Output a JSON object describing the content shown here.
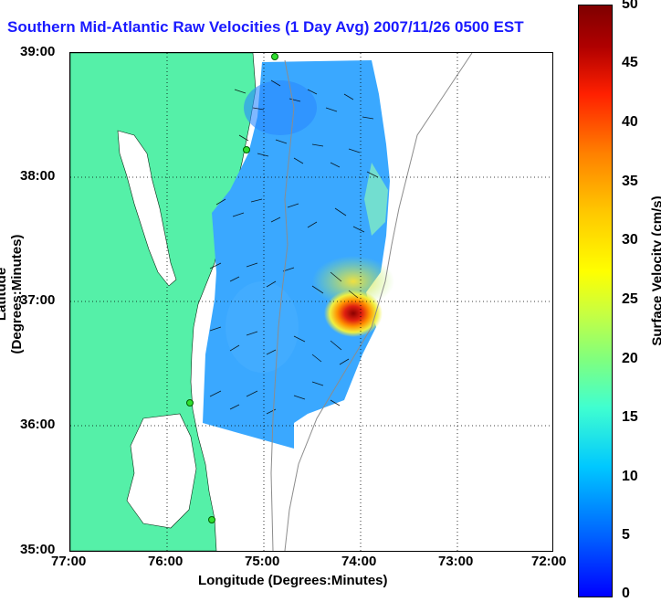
{
  "title": "Southern Mid-Atlantic Raw Velocities (1 Day Avg) 2007/11/26 0500 EST",
  "axes": {
    "xlabel": "Longitude (Degrees:Minutes)",
    "ylabel": "Latitude (Degrees:Minutes)",
    "xticks": [
      "77:00",
      "76:00",
      "75:00",
      "74:00",
      "73:00",
      "72:00"
    ],
    "yticks": [
      "39:00",
      "38:00",
      "37:00",
      "36:00",
      "35:00"
    ]
  },
  "colorbar": {
    "label": "Surface Velocity (cm/s)",
    "min": 0,
    "max": 50,
    "ticks": [
      "50",
      "45",
      "40",
      "35",
      "30",
      "25",
      "20",
      "15",
      "10",
      "5",
      "0"
    ]
  },
  "colors": {
    "land": "#55f0a8",
    "water": "#ffffff",
    "slow_current": "#3aa8ff",
    "fast_current": "#c81010",
    "title": "#1a1aff"
  }
}
